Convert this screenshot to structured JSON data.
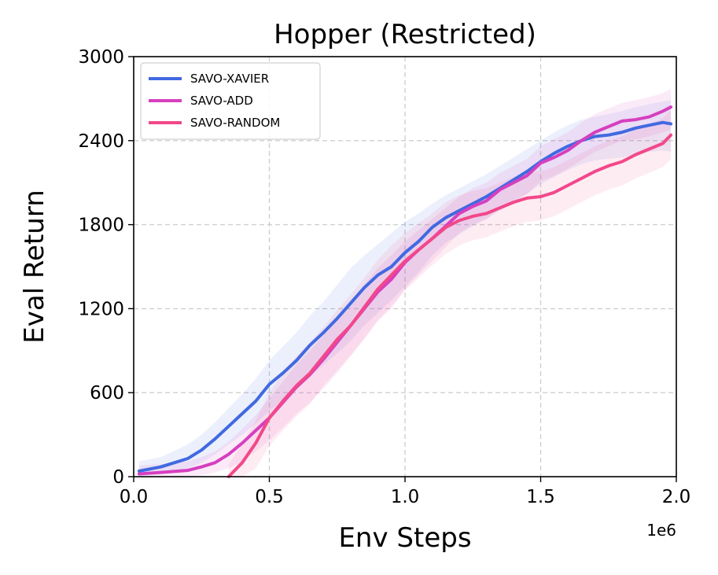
{
  "chart_data": {
    "type": "line",
    "title": "Hopper (Restricted)",
    "xlabel": "Env Steps",
    "ylabel": "Eval Return",
    "x_offset_label": "1e6",
    "xlim": [
      0,
      2.0
    ],
    "ylim": [
      0,
      3000
    ],
    "xticks": [
      "0.0",
      "0.5",
      "1.0",
      "1.5",
      "2.0"
    ],
    "xtick_values": [
      0,
      0.5,
      1.0,
      1.5,
      2.0
    ],
    "yticks": [
      "0",
      "600",
      "1200",
      "1800",
      "2400",
      "3000"
    ],
    "ytick_values": [
      0,
      600,
      1200,
      1800,
      2400,
      3000
    ],
    "grid": true,
    "legend_position": "top-left",
    "x": [
      0.02,
      0.1,
      0.2,
      0.25,
      0.3,
      0.35,
      0.4,
      0.45,
      0.5,
      0.55,
      0.6,
      0.65,
      0.7,
      0.75,
      0.8,
      0.85,
      0.9,
      0.95,
      1.0,
      1.05,
      1.1,
      1.15,
      1.2,
      1.25,
      1.3,
      1.35,
      1.4,
      1.45,
      1.5,
      1.55,
      1.6,
      1.65,
      1.7,
      1.75,
      1.8,
      1.85,
      1.9,
      1.95,
      1.98
    ],
    "series": [
      {
        "name": "SAVO-XAVIER",
        "color": "#4169e1",
        "values": [
          40,
          70,
          130,
          190,
          270,
          360,
          450,
          540,
          660,
          740,
          830,
          940,
          1030,
          1130,
          1240,
          1350,
          1440,
          1500,
          1600,
          1680,
          1780,
          1850,
          1900,
          1950,
          2000,
          2060,
          2120,
          2180,
          2250,
          2310,
          2360,
          2400,
          2430,
          2440,
          2460,
          2490,
          2510,
          2530,
          2520
        ],
        "band": [
          [
            5,
            110
          ],
          [
            20,
            140
          ],
          [
            60,
            230
          ],
          [
            100,
            300
          ],
          [
            160,
            390
          ],
          [
            230,
            490
          ],
          [
            300,
            590
          ],
          [
            380,
            700
          ],
          [
            470,
            830
          ],
          [
            550,
            930
          ],
          [
            620,
            1030
          ],
          [
            720,
            1150
          ],
          [
            800,
            1250
          ],
          [
            880,
            1370
          ],
          [
            970,
            1490
          ],
          [
            1080,
            1580
          ],
          [
            1170,
            1660
          ],
          [
            1260,
            1740
          ],
          [
            1360,
            1820
          ],
          [
            1460,
            1880
          ],
          [
            1580,
            1950
          ],
          [
            1670,
            2010
          ],
          [
            1730,
            2060
          ],
          [
            1790,
            2110
          ],
          [
            1840,
            2160
          ],
          [
            1900,
            2220
          ],
          [
            1960,
            2280
          ],
          [
            2020,
            2340
          ],
          [
            2090,
            2400
          ],
          [
            2140,
            2460
          ],
          [
            2190,
            2510
          ],
          [
            2230,
            2550
          ],
          [
            2260,
            2570
          ],
          [
            2270,
            2590
          ],
          [
            2280,
            2610
          ],
          [
            2300,
            2640
          ],
          [
            2320,
            2660
          ],
          [
            2330,
            2680
          ],
          [
            2320,
            2690
          ]
        ]
      },
      {
        "name": "SAVO-ADD",
        "color": "#d63fbf",
        "values": [
          20,
          30,
          45,
          70,
          100,
          160,
          240,
          330,
          420,
          530,
          640,
          730,
          840,
          960,
          1080,
          1200,
          1320,
          1410,
          1530,
          1620,
          1700,
          1790,
          1880,
          1930,
          1970,
          2050,
          2100,
          2150,
          2240,
          2280,
          2330,
          2400,
          2460,
          2500,
          2540,
          2550,
          2570,
          2610,
          2640
        ],
        "band": [
          [
            0,
            80
          ],
          [
            0,
            90
          ],
          [
            0,
            110
          ],
          [
            10,
            140
          ],
          [
            30,
            180
          ],
          [
            60,
            250
          ],
          [
            110,
            340
          ],
          [
            180,
            440
          ],
          [
            260,
            560
          ],
          [
            350,
            680
          ],
          [
            450,
            800
          ],
          [
            530,
            900
          ],
          [
            630,
            1010
          ],
          [
            740,
            1130
          ],
          [
            860,
            1250
          ],
          [
            980,
            1370
          ],
          [
            1110,
            1490
          ],
          [
            1200,
            1580
          ],
          [
            1340,
            1680
          ],
          [
            1440,
            1760
          ],
          [
            1540,
            1840
          ],
          [
            1640,
            1920
          ],
          [
            1740,
            2000
          ],
          [
            1800,
            2060
          ],
          [
            1840,
            2100
          ],
          [
            1920,
            2170
          ],
          [
            1970,
            2220
          ],
          [
            2020,
            2270
          ],
          [
            2110,
            2360
          ],
          [
            2150,
            2410
          ],
          [
            2200,
            2460
          ],
          [
            2260,
            2530
          ],
          [
            2320,
            2590
          ],
          [
            2360,
            2630
          ],
          [
            2400,
            2670
          ],
          [
            2410,
            2690
          ],
          [
            2430,
            2710
          ],
          [
            2460,
            2740
          ],
          [
            2480,
            2770
          ]
        ]
      },
      {
        "name": "SAVO-RANDOM",
        "color": "#f2488a",
        "values": [
          null,
          null,
          null,
          null,
          null,
          0,
          100,
          240,
          420,
          540,
          650,
          740,
          860,
          980,
          1080,
          1210,
          1340,
          1440,
          1540,
          1620,
          1700,
          1780,
          1830,
          1860,
          1880,
          1920,
          1960,
          1990,
          2000,
          2030,
          2080,
          2130,
          2180,
          2220,
          2250,
          2300,
          2340,
          2380,
          2440
        ],
        "band": [
          [
            null,
            null
          ],
          [
            null,
            null
          ],
          [
            null,
            null
          ],
          [
            null,
            null
          ],
          [
            null,
            null
          ],
          [
            0,
            90
          ],
          [
            0,
            230
          ],
          [
            60,
            400
          ],
          [
            220,
            600
          ],
          [
            330,
            740
          ],
          [
            430,
            860
          ],
          [
            520,
            960
          ],
          [
            650,
            1070
          ],
          [
            760,
            1190
          ],
          [
            870,
            1300
          ],
          [
            990,
            1420
          ],
          [
            1120,
            1550
          ],
          [
            1220,
            1650
          ],
          [
            1330,
            1740
          ],
          [
            1420,
            1810
          ],
          [
            1510,
            1880
          ],
          [
            1590,
            1960
          ],
          [
            1650,
            2010
          ],
          [
            1690,
            2040
          ],
          [
            1710,
            2060
          ],
          [
            1750,
            2100
          ],
          [
            1790,
            2140
          ],
          [
            1820,
            2170
          ],
          [
            1830,
            2180
          ],
          [
            1860,
            2210
          ],
          [
            1910,
            2260
          ],
          [
            1960,
            2310
          ],
          [
            2010,
            2360
          ],
          [
            2050,
            2400
          ],
          [
            2080,
            2430
          ],
          [
            2130,
            2480
          ],
          [
            2170,
            2520
          ],
          [
            2210,
            2560
          ],
          [
            2270,
            2620
          ]
        ]
      }
    ]
  }
}
